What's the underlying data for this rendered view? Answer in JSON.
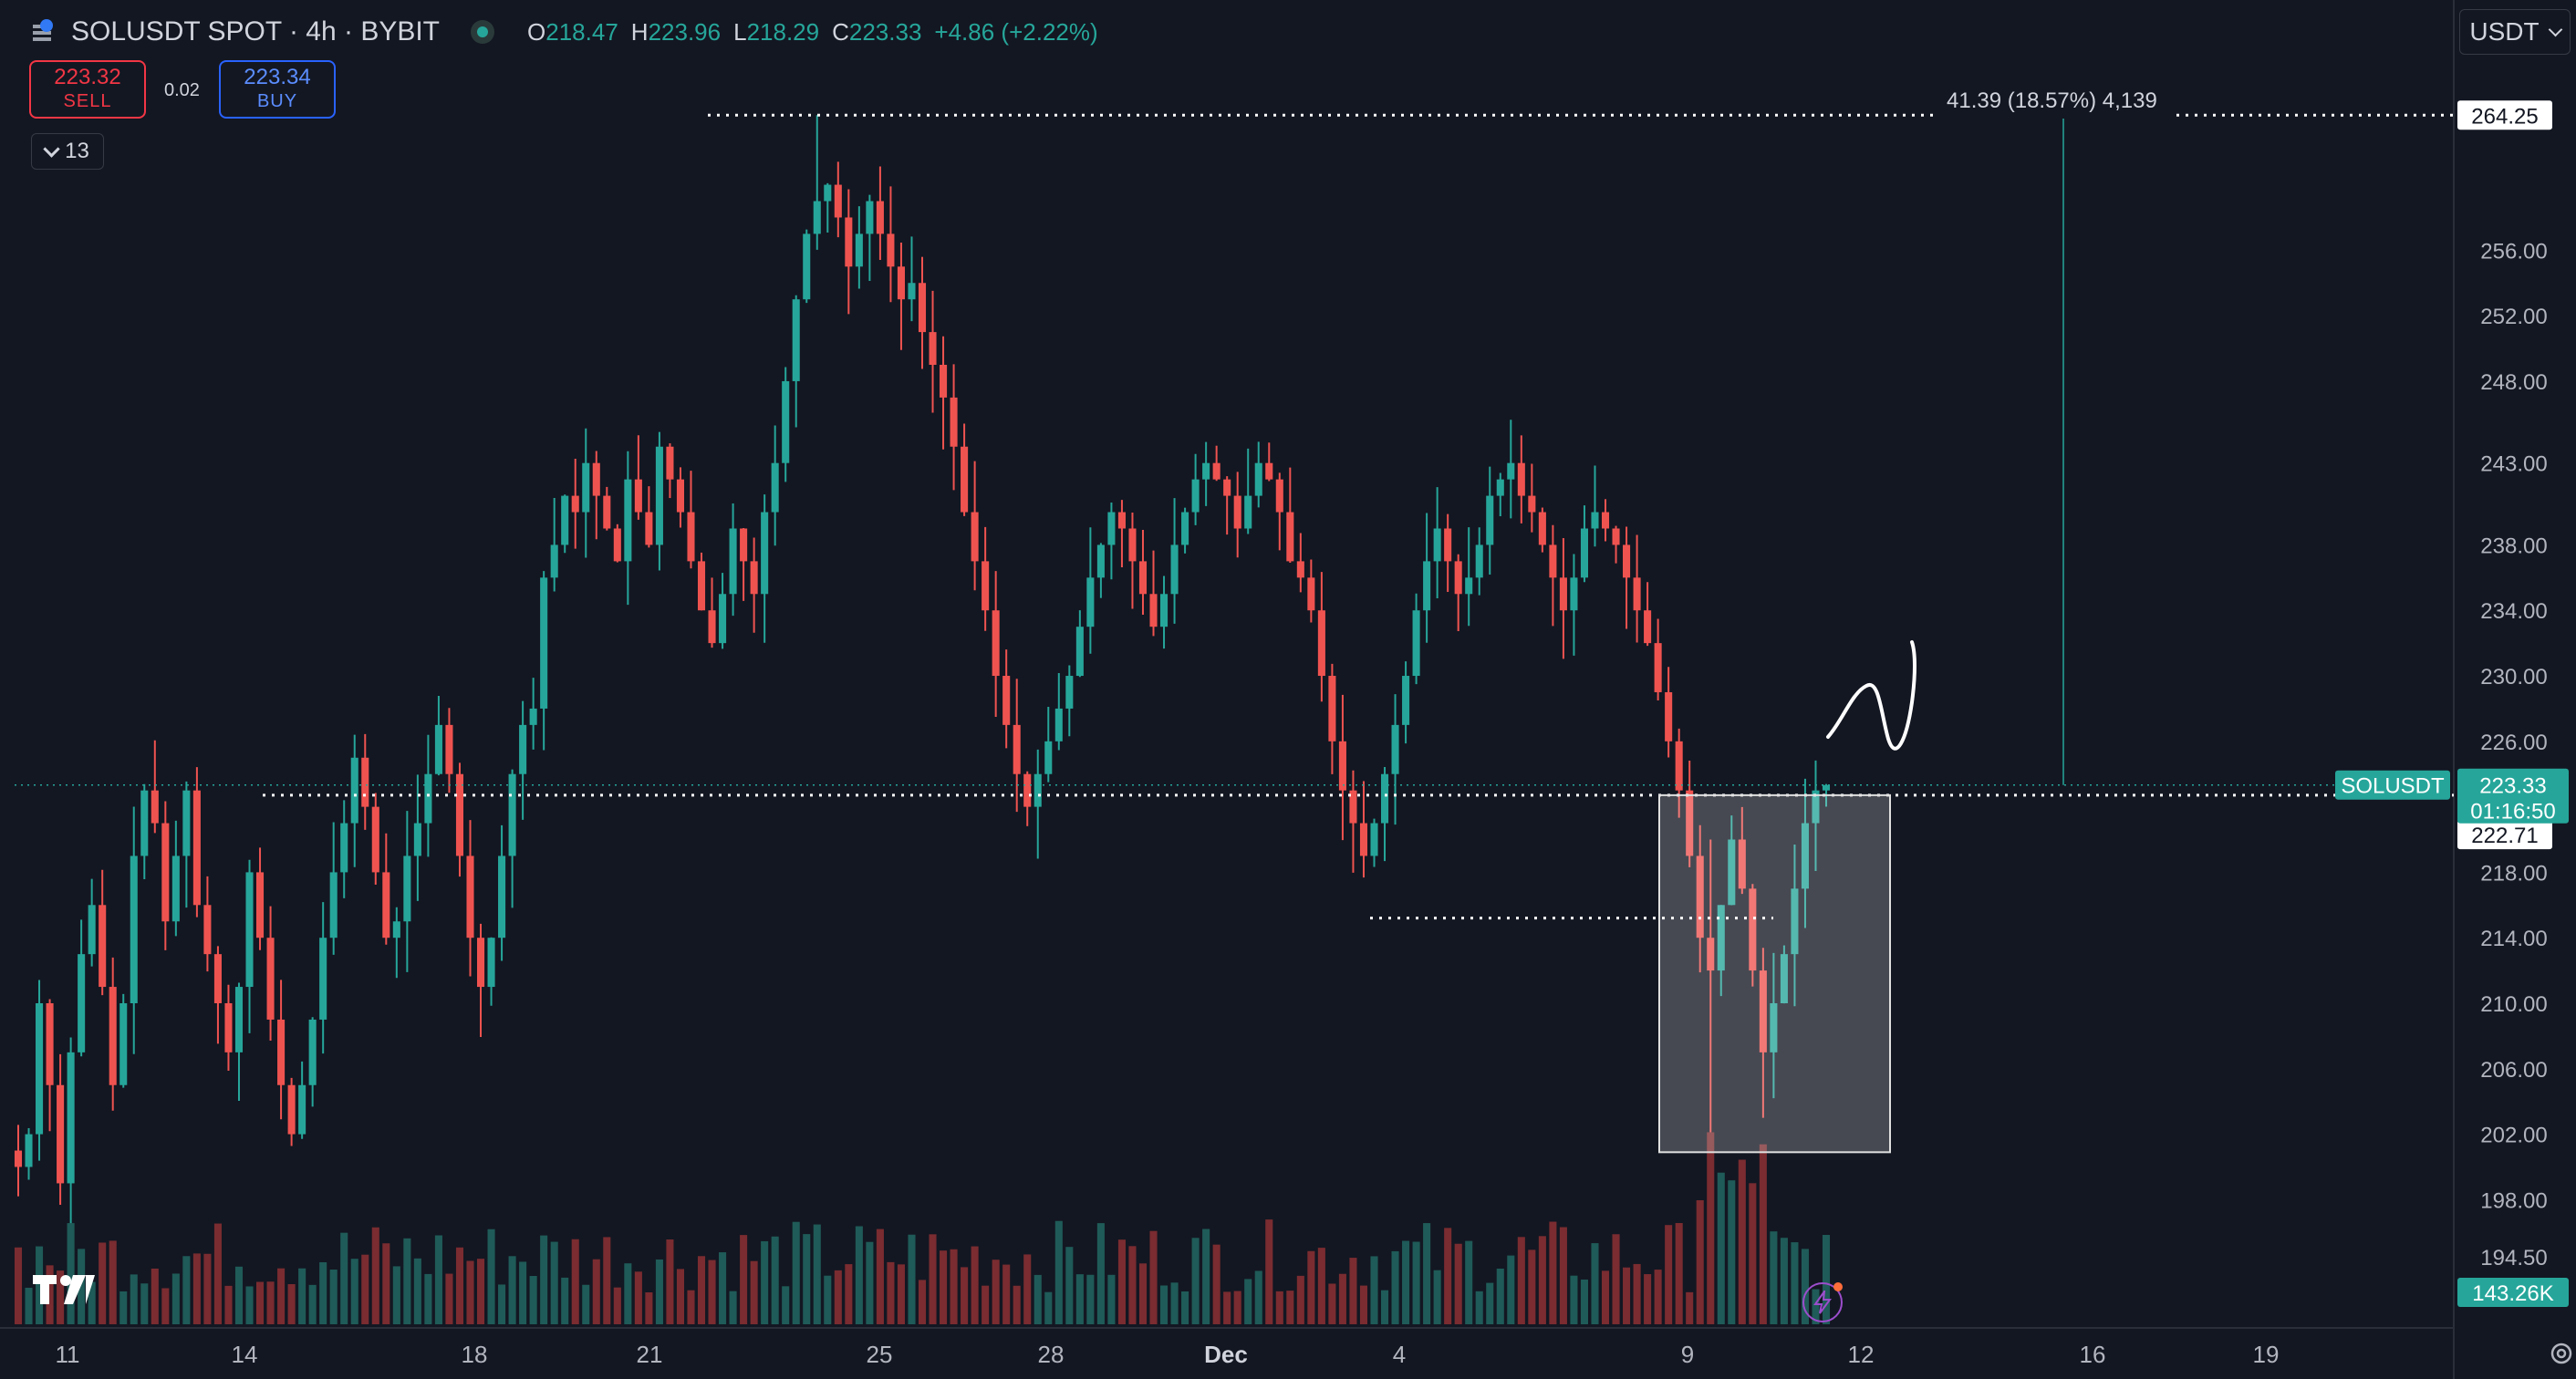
{
  "header": {
    "symbol": "SOLUSDT SPOT · 4h · BYBIT",
    "ohlc": [
      {
        "k": "O",
        "v": "218.47"
      },
      {
        "k": "H",
        "v": "223.96"
      },
      {
        "k": "L",
        "v": "218.29"
      },
      {
        "k": "C",
        "v": "223.33"
      },
      {
        "k": "",
        "v": "+4.86 (+2.22%)"
      }
    ]
  },
  "trade": {
    "sell_price": "223.32",
    "sell_label": "SELL",
    "spread": "0.02",
    "buy_price": "223.34",
    "buy_label": "BUY"
  },
  "indicators_count": "13",
  "currency": "USDT",
  "measure": {
    "text": "41.39 (18.57%) 4,139"
  },
  "price_axis": {
    "ticks": [
      "256.00",
      "252.00",
      "248.00",
      "243.00",
      "238.00",
      "234.00",
      "230.00",
      "226.00",
      "218.00",
      "214.00",
      "210.00",
      "206.00",
      "202.00",
      "198.00",
      "194.50"
    ],
    "labels": {
      "top_line": "264.25",
      "symbol": "SOLUSDT",
      "last_price": "223.33",
      "countdown": "01:16:50",
      "support": "222.71",
      "volume": "143.26K"
    }
  },
  "time_axis": [
    "11",
    "14",
    "18",
    "21",
    "25",
    "28",
    "Dec",
    "4",
    "9",
    "12",
    "16",
    "19"
  ],
  "colors": {
    "background": "#131722",
    "up": "#26a69a",
    "down": "#ef5350",
    "up_vol": "#1f5b58",
    "down_vol": "#7a2c30"
  },
  "chart_data": {
    "type": "candlestick",
    "ylim": [
      190.5,
      268.5
    ],
    "series": [
      {
        "name": "SOLUSDT",
        "values": [
          200,
          202,
          210,
          205,
          199,
          207,
          213,
          216,
          211,
          205,
          210,
          219,
          223,
          221,
          215,
          219,
          223,
          216,
          213,
          210,
          207,
          211,
          218,
          214,
          209,
          205,
          202,
          205,
          209,
          214,
          218,
          221,
          225,
          222,
          218,
          214,
          215,
          219,
          221,
          224,
          227,
          224,
          219,
          214,
          211,
          214,
          219,
          224,
          227,
          228,
          236,
          238,
          241,
          240,
          243,
          241,
          239,
          237,
          242,
          240,
          238,
          244,
          242,
          240,
          237,
          234,
          232,
          235,
          239,
          237,
          235,
          240,
          243,
          248,
          253,
          257,
          259,
          260,
          258,
          255,
          257,
          259,
          257,
          255,
          253,
          254,
          251,
          249,
          247,
          244,
          240,
          237,
          234,
          230,
          227,
          224,
          222,
          224,
          226,
          228,
          230,
          233,
          236,
          238,
          240,
          239,
          237,
          235,
          233,
          235,
          238,
          240,
          242,
          243,
          242,
          241,
          239,
          241,
          243,
          242,
          240,
          237,
          236,
          234,
          230,
          226,
          223,
          221,
          219,
          221,
          224,
          227,
          230,
          234,
          237,
          239,
          237,
          235,
          236,
          238,
          241,
          242,
          243,
          241,
          240,
          238,
          236,
          234,
          236,
          239,
          240,
          239,
          238,
          236,
          234,
          232,
          229,
          226,
          223,
          219,
          214,
          212,
          216,
          220,
          217,
          212,
          207,
          210,
          213,
          217,
          221,
          223,
          223.33
        ]
      }
    ]
  }
}
